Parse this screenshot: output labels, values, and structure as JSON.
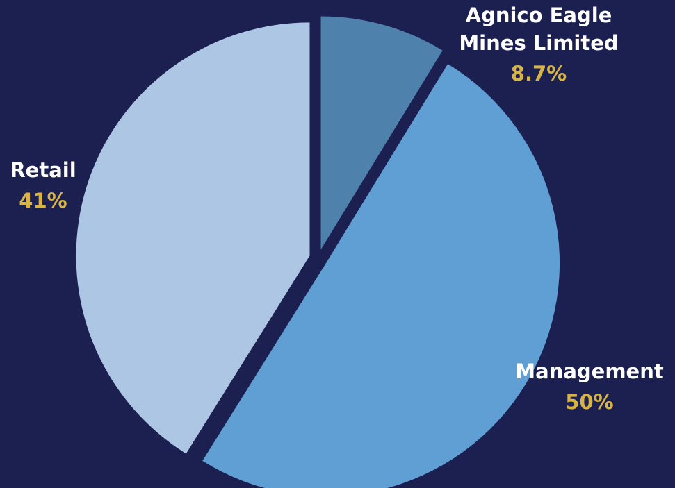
{
  "chart_data": {
    "type": "pie",
    "categories": [
      "Agnico Eagle Mines Limited",
      "Management",
      "Retail"
    ],
    "values": [
      8.7,
      50,
      41
    ],
    "value_labels": [
      "8.7%",
      "50%",
      "41%"
    ],
    "colors": [
      "#4f81ad",
      "#609fd3",
      "#adc6e4"
    ]
  }
}
